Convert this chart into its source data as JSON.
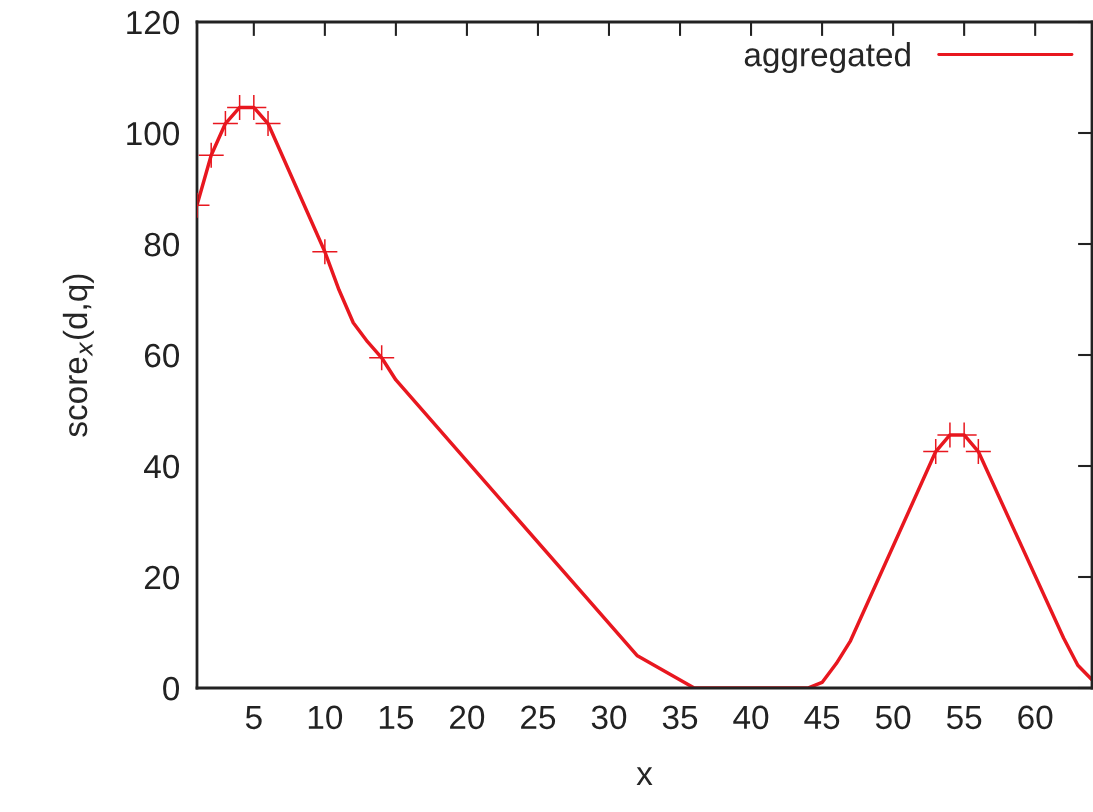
{
  "chart_data": {
    "type": "line",
    "xlabel": "x",
    "ylabel": "score$_{x}$(d,q)",
    "xlim": [
      1,
      64
    ],
    "xticks": [
      5,
      10,
      15,
      20,
      25,
      30,
      35,
      40,
      45,
      50,
      55,
      60
    ],
    "ylim": [
      0,
      120
    ],
    "yticks": [
      0,
      20,
      40,
      60,
      80,
      100,
      120
    ],
    "grid": false,
    "legend": "top right",
    "series": [
      {
        "name": "aggregated",
        "color": "#e8171f",
        "marker": "none",
        "x": [
          1,
          2,
          3,
          4,
          5,
          6,
          10,
          11,
          12,
          13,
          14,
          15,
          32,
          36,
          44,
          45,
          46,
          47,
          53,
          54,
          55,
          56,
          62,
          63,
          64
        ],
        "values": [
          87,
          96,
          101.7,
          104.6,
          104.6,
          101.7,
          78.6,
          71.7,
          65.8,
          62.4,
          59.5,
          55.5,
          5.8,
          0,
          0,
          1,
          4.4,
          8.5,
          42.6,
          45.6,
          45.6,
          42.6,
          9,
          4.1,
          1.5
        ]
      },
      {
        "type": "scatter",
        "color": "#e8171f",
        "marker": "cross",
        "x": [
          1,
          2,
          3,
          4,
          5,
          6,
          10,
          14,
          53,
          54,
          55,
          56
        ],
        "values": [
          87,
          96,
          101.7,
          104.6,
          104.6,
          101.7,
          78.6,
          59.5,
          42.6,
          45.6,
          45.6,
          42.6
        ]
      }
    ]
  }
}
